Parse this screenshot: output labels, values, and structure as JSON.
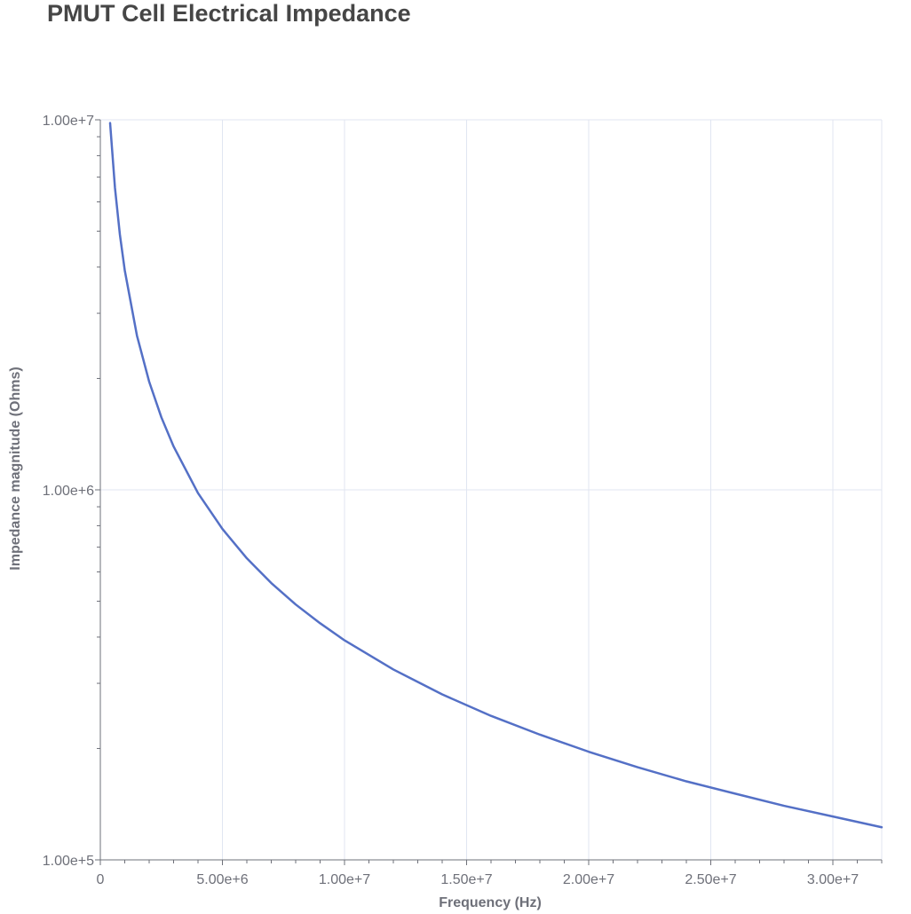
{
  "chart_data": {
    "type": "line",
    "title": "PMUT Cell Electrical Impedance",
    "xlabel": "Frequency (Hz)",
    "ylabel": "Impedance magnitude (Ohms)",
    "x_scale": "linear",
    "y_scale": "log",
    "xlim": [
      0,
      32000000
    ],
    "ylim": [
      100000,
      10000000
    ],
    "x_ticks": [
      0,
      5000000,
      10000000,
      15000000,
      20000000,
      25000000,
      30000000
    ],
    "x_tick_labels": [
      "0",
      "5.00e+6",
      "1.00e+7",
      "1.50e+7",
      "2.00e+7",
      "2.50e+7",
      "3.00e+7"
    ],
    "y_ticks": [
      100000,
      1000000,
      10000000
    ],
    "y_tick_labels": [
      "1.00e+5",
      "1.00e+6",
      "1.00e+7"
    ],
    "grid": true,
    "colors": {
      "series": "#5470c6",
      "grid": "#e0e6f1",
      "axis": "#6e7079",
      "title": "#464646"
    },
    "series": [
      {
        "x": [
          400000,
          600000,
          800000,
          1000000,
          1500000,
          2000000,
          2500000,
          3000000,
          4000000,
          5000000,
          6000000,
          7000000,
          8000000,
          9000000,
          10000000,
          12000000,
          14000000,
          16000000,
          18000000,
          20000000,
          22000000,
          24000000,
          26000000,
          28000000,
          30000000,
          32000000
        ],
        "y": [
          9800000,
          6540000,
          4900000,
          3920000,
          2610000,
          1960000,
          1570000,
          1310000,
          980000,
          784000,
          653000,
          560000,
          490000,
          436000,
          392000,
          327000,
          280000,
          245000,
          218000,
          196000,
          178000,
          163000,
          151000,
          140000,
          131000,
          122500
        ]
      }
    ]
  }
}
